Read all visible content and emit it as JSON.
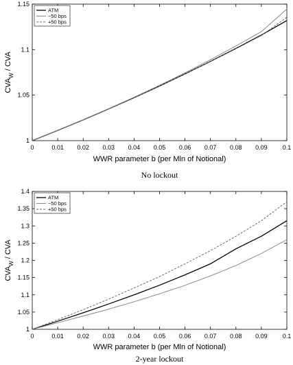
{
  "chart_data": [
    {
      "type": "line",
      "title": "",
      "caption": "No lockout",
      "xlabel": "WWR parameter b (per Mln of Notional)",
      "ylabel_main": "CVA",
      "ylabel_sub": "W",
      "ylabel_rest": " / CVA",
      "xlim": [
        0,
        0.1
      ],
      "ylim": [
        1,
        1.15
      ],
      "xticks": [
        "0",
        "0.01",
        "0.02",
        "0.03",
        "0.04",
        "0.05",
        "0.06",
        "0.07",
        "0.08",
        "0.09",
        "0.1"
      ],
      "yticks": [
        "1",
        "1.05",
        "1.1",
        "1.15"
      ],
      "legend_position": "top-left",
      "x": [
        0,
        0.01,
        0.02,
        0.03,
        0.04,
        0.05,
        0.06,
        0.07,
        0.08,
        0.09,
        0.1
      ],
      "series": [
        {
          "name": "ATM",
          "color": "#000000",
          "style": "solid",
          "values": [
            1.0,
            1.0112,
            1.0228,
            1.0348,
            1.0472,
            1.06,
            1.0733,
            1.0871,
            1.1013,
            1.116,
            1.132
          ]
        },
        {
          "name": "−50 bps",
          "color": "#888888",
          "style": "solid",
          "values": [
            1.0,
            1.0113,
            1.023,
            1.0351,
            1.0477,
            1.0608,
            1.0745,
            1.0889,
            1.104,
            1.1198,
            1.1445
          ]
        },
        {
          "name": "+50 bps",
          "color": "#666666",
          "style": "dashed",
          "values": [
            1.0,
            1.0112,
            1.0228,
            1.0348,
            1.0472,
            1.06,
            1.0733,
            1.0869,
            1.101,
            1.1155,
            1.1355
          ]
        }
      ]
    },
    {
      "type": "line",
      "title": "",
      "caption": "2-year lockout",
      "xlabel": "WWR parameter b (per Mln of Notional)",
      "ylabel_main": "CVA",
      "ylabel_sub": "W",
      "ylabel_rest": " / CVA",
      "xlim": [
        0,
        0.1
      ],
      "ylim": [
        1,
        1.4
      ],
      "xticks": [
        "0",
        "0.01",
        "0.02",
        "0.03",
        "0.04",
        "0.05",
        "0.06",
        "0.07",
        "0.08",
        "0.09",
        "0.1"
      ],
      "yticks": [
        "1",
        "1.05",
        "1.1",
        "1.15",
        "1.2",
        "1.25",
        "1.3",
        "1.35",
        "1.4"
      ],
      "legend_position": "top-left",
      "x": [
        0,
        0.01,
        0.02,
        0.03,
        0.04,
        0.05,
        0.06,
        0.07,
        0.08,
        0.09,
        0.1
      ],
      "series": [
        {
          "name": "ATM",
          "color": "#000000",
          "style": "solid",
          "values": [
            1.0,
            1.0235,
            1.048,
            1.0735,
            1.1,
            1.128,
            1.158,
            1.19,
            1.2335,
            1.27,
            1.315
          ]
        },
        {
          "name": "−50 bps",
          "color": "#888888",
          "style": "solid",
          "values": [
            1.0,
            1.019,
            1.0385,
            1.0585,
            1.08,
            1.103,
            1.1275,
            1.155,
            1.185,
            1.22,
            1.26
          ]
        },
        {
          "name": "+50 bps",
          "color": "#666666",
          "style": "dashed",
          "values": [
            1.0,
            1.028,
            1.057,
            1.0875,
            1.12,
            1.153,
            1.19,
            1.228,
            1.27,
            1.315,
            1.37
          ]
        }
      ]
    }
  ]
}
